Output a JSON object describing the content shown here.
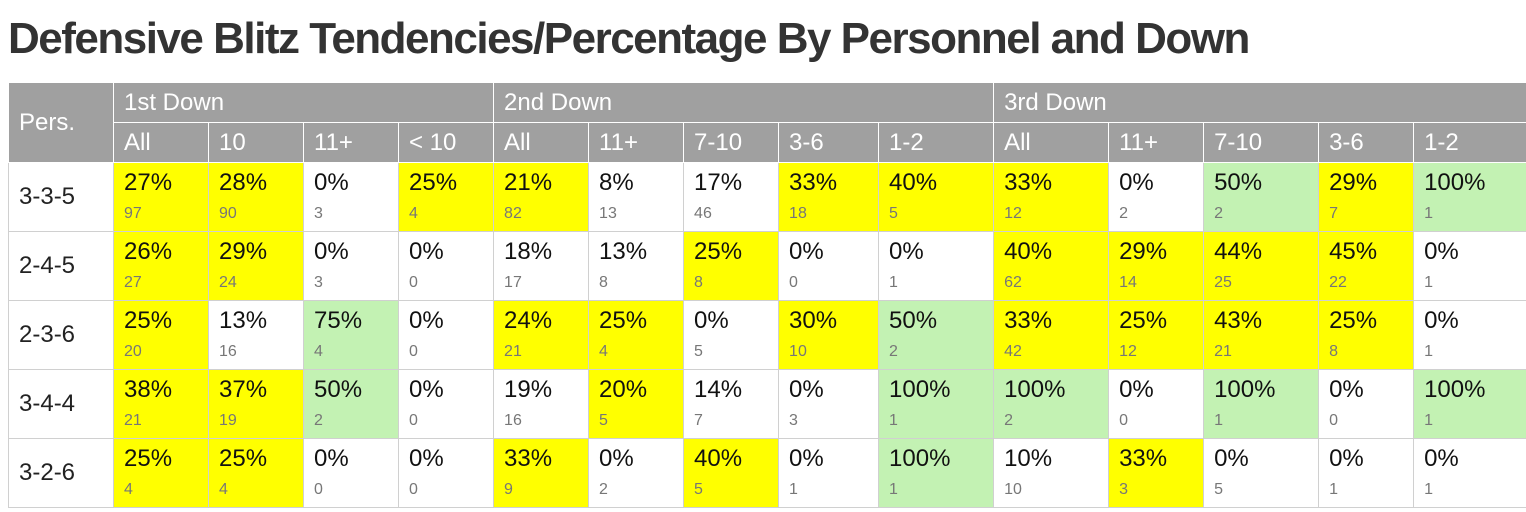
{
  "title": "Defensive Blitz Tendencies/Percentage By Personnel and Down",
  "colors": {
    "header": "#a0a0a0",
    "yellow": "#ffff00",
    "green": "#c3f2b3",
    "white": "#ffffff"
  },
  "header": {
    "pers_label": "Pers.",
    "groups": [
      {
        "label": "1st Down",
        "columns": [
          "All",
          "10",
          "11+",
          "< 10"
        ]
      },
      {
        "label": "2nd Down",
        "columns": [
          "All",
          "11+",
          "7-10",
          "3-6",
          "1-2"
        ]
      },
      {
        "label": "3rd Down",
        "columns": [
          "All",
          "11+",
          "7-10",
          "3-6",
          "1-2"
        ]
      }
    ]
  },
  "rows": [
    {
      "pers": "3-3-5",
      "cells": [
        {
          "pct": "27%",
          "n": "97",
          "hl": "y"
        },
        {
          "pct": "28%",
          "n": "90",
          "hl": "y"
        },
        {
          "pct": "0%",
          "n": "3",
          "hl": "w"
        },
        {
          "pct": "25%",
          "n": "4",
          "hl": "y"
        },
        {
          "pct": "21%",
          "n": "82",
          "hl": "y"
        },
        {
          "pct": "8%",
          "n": "13",
          "hl": "w"
        },
        {
          "pct": "17%",
          "n": "46",
          "hl": "w"
        },
        {
          "pct": "33%",
          "n": "18",
          "hl": "y"
        },
        {
          "pct": "40%",
          "n": "5",
          "hl": "y"
        },
        {
          "pct": "33%",
          "n": "12",
          "hl": "y"
        },
        {
          "pct": "0%",
          "n": "2",
          "hl": "w"
        },
        {
          "pct": "50%",
          "n": "2",
          "hl": "g"
        },
        {
          "pct": "29%",
          "n": "7",
          "hl": "y"
        },
        {
          "pct": "100%",
          "n": "1",
          "hl": "g"
        }
      ]
    },
    {
      "pers": "2-4-5",
      "cells": [
        {
          "pct": "26%",
          "n": "27",
          "hl": "y"
        },
        {
          "pct": "29%",
          "n": "24",
          "hl": "y"
        },
        {
          "pct": "0%",
          "n": "3",
          "hl": "w"
        },
        {
          "pct": "0%",
          "n": "0",
          "hl": "w"
        },
        {
          "pct": "18%",
          "n": "17",
          "hl": "w"
        },
        {
          "pct": "13%",
          "n": "8",
          "hl": "w"
        },
        {
          "pct": "25%",
          "n": "8",
          "hl": "y"
        },
        {
          "pct": "0%",
          "n": "0",
          "hl": "w"
        },
        {
          "pct": "0%",
          "n": "1",
          "hl": "w"
        },
        {
          "pct": "40%",
          "n": "62",
          "hl": "y"
        },
        {
          "pct": "29%",
          "n": "14",
          "hl": "y"
        },
        {
          "pct": "44%",
          "n": "25",
          "hl": "y"
        },
        {
          "pct": "45%",
          "n": "22",
          "hl": "y"
        },
        {
          "pct": "0%",
          "n": "1",
          "hl": "w"
        }
      ]
    },
    {
      "pers": "2-3-6",
      "cells": [
        {
          "pct": "25%",
          "n": "20",
          "hl": "y"
        },
        {
          "pct": "13%",
          "n": "16",
          "hl": "w"
        },
        {
          "pct": "75%",
          "n": "4",
          "hl": "g"
        },
        {
          "pct": "0%",
          "n": "0",
          "hl": "w"
        },
        {
          "pct": "24%",
          "n": "21",
          "hl": "y"
        },
        {
          "pct": "25%",
          "n": "4",
          "hl": "y"
        },
        {
          "pct": "0%",
          "n": "5",
          "hl": "w"
        },
        {
          "pct": "30%",
          "n": "10",
          "hl": "y"
        },
        {
          "pct": "50%",
          "n": "2",
          "hl": "g"
        },
        {
          "pct": "33%",
          "n": "42",
          "hl": "y"
        },
        {
          "pct": "25%",
          "n": "12",
          "hl": "y"
        },
        {
          "pct": "43%",
          "n": "21",
          "hl": "y"
        },
        {
          "pct": "25%",
          "n": "8",
          "hl": "y"
        },
        {
          "pct": "0%",
          "n": "1",
          "hl": "w"
        }
      ]
    },
    {
      "pers": "3-4-4",
      "cells": [
        {
          "pct": "38%",
          "n": "21",
          "hl": "y"
        },
        {
          "pct": "37%",
          "n": "19",
          "hl": "y"
        },
        {
          "pct": "50%",
          "n": "2",
          "hl": "g"
        },
        {
          "pct": "0%",
          "n": "0",
          "hl": "w"
        },
        {
          "pct": "19%",
          "n": "16",
          "hl": "w"
        },
        {
          "pct": "20%",
          "n": "5",
          "hl": "y"
        },
        {
          "pct": "14%",
          "n": "7",
          "hl": "w"
        },
        {
          "pct": "0%",
          "n": "3",
          "hl": "w"
        },
        {
          "pct": "100%",
          "n": "1",
          "hl": "g"
        },
        {
          "pct": "100%",
          "n": "2",
          "hl": "g"
        },
        {
          "pct": "0%",
          "n": "0",
          "hl": "w"
        },
        {
          "pct": "100%",
          "n": "1",
          "hl": "g"
        },
        {
          "pct": "0%",
          "n": "0",
          "hl": "w"
        },
        {
          "pct": "100%",
          "n": "1",
          "hl": "g"
        }
      ]
    },
    {
      "pers": "3-2-6",
      "cells": [
        {
          "pct": "25%",
          "n": "4",
          "hl": "y"
        },
        {
          "pct": "25%",
          "n": "4",
          "hl": "y"
        },
        {
          "pct": "0%",
          "n": "0",
          "hl": "w"
        },
        {
          "pct": "0%",
          "n": "0",
          "hl": "w"
        },
        {
          "pct": "33%",
          "n": "9",
          "hl": "y"
        },
        {
          "pct": "0%",
          "n": "2",
          "hl": "w"
        },
        {
          "pct": "40%",
          "n": "5",
          "hl": "y"
        },
        {
          "pct": "0%",
          "n": "1",
          "hl": "w"
        },
        {
          "pct": "100%",
          "n": "1",
          "hl": "g"
        },
        {
          "pct": "10%",
          "n": "10",
          "hl": "w"
        },
        {
          "pct": "33%",
          "n": "3",
          "hl": "y"
        },
        {
          "pct": "0%",
          "n": "5",
          "hl": "w"
        },
        {
          "pct": "0%",
          "n": "1",
          "hl": "w"
        },
        {
          "pct": "0%",
          "n": "1",
          "hl": "w"
        }
      ]
    }
  ]
}
